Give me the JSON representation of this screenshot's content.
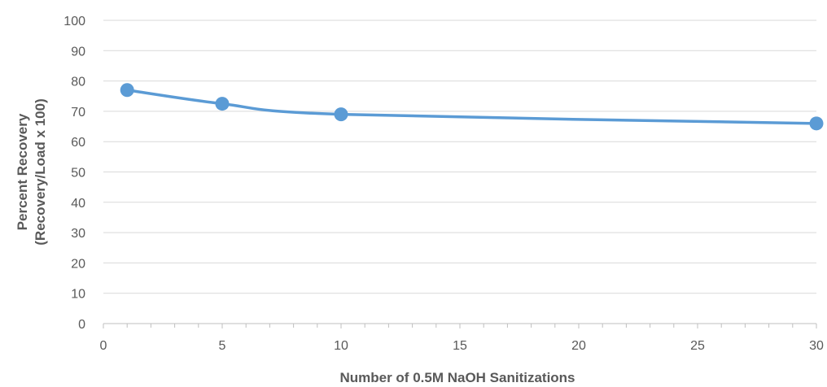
{
  "chart_data": {
    "type": "scatter",
    "title": "",
    "xlabel": "Number of 0.5M NaOH Sanitizations",
    "ylabel_lines": [
      "Percent Recovery",
      "(Recovery/Load x 100)"
    ],
    "xlim": [
      0,
      30
    ],
    "ylim": [
      0,
      100
    ],
    "x_ticks": [
      0,
      5,
      10,
      15,
      20,
      25,
      30
    ],
    "y_ticks": [
      0,
      10,
      20,
      30,
      40,
      50,
      60,
      70,
      80,
      90,
      100
    ],
    "x_minor_step": 1,
    "grid": true,
    "smooth_line": true,
    "series": [
      {
        "color": "#5b9bd5",
        "x": [
          1,
          5,
          10,
          30
        ],
        "y": [
          77,
          72.5,
          69,
          66
        ]
      }
    ]
  }
}
